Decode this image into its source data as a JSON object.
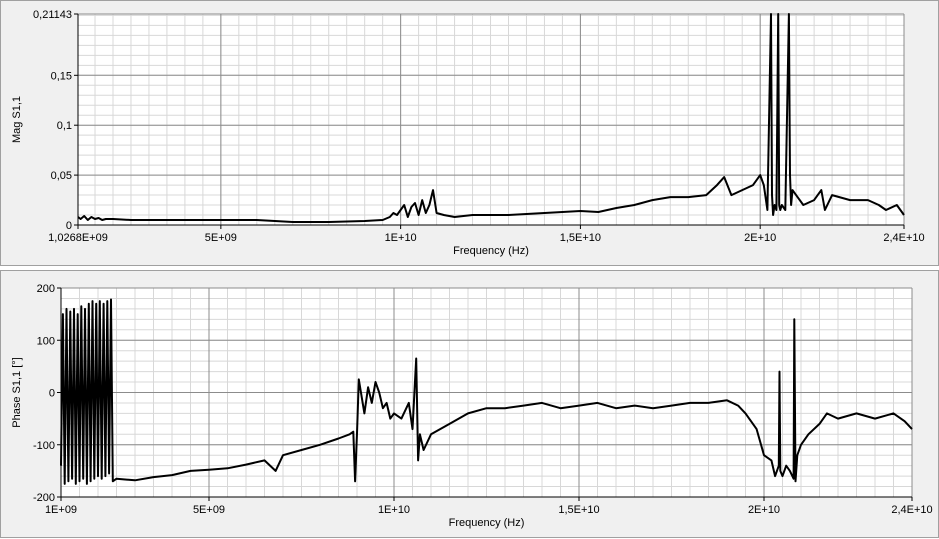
{
  "chart_data": [
    {
      "type": "line",
      "title": "",
      "xlabel": "Frequency (Hz)",
      "ylabel": "Mag S1,1",
      "xlim": [
        1026800000.0,
        24000000000.0
      ],
      "ylim": [
        0,
        0.21143
      ],
      "x_ticks": [
        {
          "value": 1026800000.0,
          "label": "1,0268E+09"
        },
        {
          "value": 5000000000.0,
          "label": "5E+09"
        },
        {
          "value": 10000000000.0,
          "label": "1E+10"
        },
        {
          "value": 15000000000.0,
          "label": "1,5E+10"
        },
        {
          "value": 20000000000.0,
          "label": "2E+10"
        },
        {
          "value": 24000000000.0,
          "label": "2,4E+10"
        }
      ],
      "y_ticks": [
        {
          "value": 0,
          "label": "0"
        },
        {
          "value": 0.05,
          "label": "0,05"
        },
        {
          "value": 0.1,
          "label": "0,1"
        },
        {
          "value": 0.15,
          "label": "0,15"
        },
        {
          "value": 0.21143,
          "label": "0,21143"
        }
      ],
      "grid": true,
      "series": [
        {
          "x": [
            1030000000.0,
            1100000000.0,
            1200000000.0,
            1300000000.0,
            1400000000.0,
            1500000000.0,
            1600000000.0,
            1700000000.0,
            1800000000.0,
            2000000000.0,
            2500000000.0,
            3000000000.0,
            4000000000.0,
            5000000000.0,
            6000000000.0,
            6500000000.0,
            7000000000.0,
            8000000000.0,
            9000000000.0,
            9500000000.0,
            9700000000.0,
            9800000000.0,
            9900000000.0,
            10000000000.0,
            10100000000.0,
            10200000000.0,
            10300000000.0,
            10400000000.0,
            10500000000.0,
            10600000000.0,
            10700000000.0,
            10800000000.0,
            10900000000.0,
            11000000000.0,
            11200000000.0,
            11500000000.0,
            12000000000.0,
            13000000000.0,
            14000000000.0,
            15000000000.0,
            15500000000.0,
            16000000000.0,
            16500000000.0,
            17000000000.0,
            17500000000.0,
            18000000000.0,
            18500000000.0,
            18800000000.0,
            19000000000.0,
            19200000000.0,
            19500000000.0,
            19800000000.0,
            20000000000.0,
            20100000000.0,
            20200000000.0,
            20300000000.0,
            20330000000.0,
            20360000000.0,
            20400000000.0,
            20450000000.0,
            20500000000.0,
            20530000000.0,
            20560000000.0,
            20600000000.0,
            20700000000.0,
            20800000000.0,
            20830000000.0,
            20860000000.0,
            20900000000.0,
            21000000000.0,
            21200000000.0,
            21500000000.0,
            21700000000.0,
            21800000000.0,
            22000000000.0,
            22500000000.0,
            23000000000.0,
            23300000000.0,
            23500000000.0,
            23800000000.0,
            24000000000.0
          ],
          "y": [
            0.008,
            0.006,
            0.009,
            0.005,
            0.008,
            0.006,
            0.007,
            0.005,
            0.006,
            0.006,
            0.005,
            0.005,
            0.005,
            0.005,
            0.005,
            0.004,
            0.003,
            0.003,
            0.004,
            0.005,
            0.008,
            0.012,
            0.01,
            0.015,
            0.02,
            0.008,
            0.018,
            0.022,
            0.01,
            0.025,
            0.012,
            0.02,
            0.035,
            0.012,
            0.01,
            0.008,
            0.01,
            0.01,
            0.012,
            0.014,
            0.013,
            0.017,
            0.02,
            0.025,
            0.028,
            0.028,
            0.03,
            0.04,
            0.048,
            0.03,
            0.035,
            0.04,
            0.05,
            0.04,
            0.015,
            0.2114,
            0.03,
            0.01,
            0.02,
            0.015,
            0.2114,
            0.02,
            0.015,
            0.02,
            0.015,
            0.2114,
            0.05,
            0.02,
            0.035,
            0.03,
            0.02,
            0.025,
            0.035,
            0.015,
            0.03,
            0.025,
            0.025,
            0.02,
            0.015,
            0.02,
            0.01
          ]
        }
      ]
    },
    {
      "type": "line",
      "title": "",
      "xlabel": "Frequency (Hz)",
      "ylabel": "Phase S1,1 [°]",
      "xlim": [
        1000000000.0,
        24000000000.0
      ],
      "ylim": [
        -200,
        200
      ],
      "x_ticks": [
        {
          "value": 1000000000.0,
          "label": "1E+09"
        },
        {
          "value": 5000000000.0,
          "label": "5E+09"
        },
        {
          "value": 10000000000.0,
          "label": "1E+10"
        },
        {
          "value": 15000000000.0,
          "label": "1,5E+10"
        },
        {
          "value": 20000000000.0,
          "label": "2E+10"
        },
        {
          "value": 24000000000.0,
          "label": "2,4E+10"
        }
      ],
      "y_ticks": [
        {
          "value": -200,
          "label": "-200"
        },
        {
          "value": -100,
          "label": "-100"
        },
        {
          "value": 0,
          "label": "0"
        },
        {
          "value": 100,
          "label": "100"
        },
        {
          "value": 200,
          "label": "200"
        }
      ],
      "grid": true,
      "series": [
        {
          "x": [
            1000000000.0,
            1050000000.0,
            1100000000.0,
            1150000000.0,
            1200000000.0,
            1250000000.0,
            1300000000.0,
            1350000000.0,
            1400000000.0,
            1450000000.0,
            1500000000.0,
            1550000000.0,
            1600000000.0,
            1650000000.0,
            1700000000.0,
            1750000000.0,
            1800000000.0,
            1850000000.0,
            1900000000.0,
            1950000000.0,
            2000000000.0,
            2050000000.0,
            2100000000.0,
            2150000000.0,
            2200000000.0,
            2250000000.0,
            2300000000.0,
            2350000000.0,
            2400000000.0,
            2500000000.0,
            3000000000.0,
            3500000000.0,
            4000000000.0,
            4500000000.0,
            5000000000.0,
            5500000000.0,
            6000000000.0,
            6500000000.0,
            6800000000.0,
            7000000000.0,
            7500000000.0,
            8000000000.0,
            8500000000.0,
            8800000000.0,
            8900000000.0,
            8950000000.0,
            9000000000.0,
            9050000000.0,
            9200000000.0,
            9300000000.0,
            9400000000.0,
            9500000000.0,
            9600000000.0,
            9700000000.0,
            9800000000.0,
            9900000000.0,
            10000000000.0,
            10200000000.0,
            10400000000.0,
            10500000000.0,
            10600000000.0,
            10650000000.0,
            10700000000.0,
            10800000000.0,
            11000000000.0,
            11500000000.0,
            12000000000.0,
            12500000000.0,
            13000000000.0,
            13500000000.0,
            14000000000.0,
            14500000000.0,
            15000000000.0,
            15500000000.0,
            16000000000.0,
            16500000000.0,
            17000000000.0,
            17500000000.0,
            18000000000.0,
            18500000000.0,
            19000000000.0,
            19300000000.0,
            19500000000.0,
            19800000000.0,
            20000000000.0,
            20200000000.0,
            20300000000.0,
            20400000000.0,
            20420000000.0,
            20440000000.0,
            20500000000.0,
            20600000000.0,
            20700000000.0,
            20800000000.0,
            20820000000.0,
            20850000000.0,
            20900000000.0,
            21000000000.0,
            21200000000.0,
            21500000000.0,
            21700000000.0,
            22000000000.0,
            22500000000.0,
            23000000000.0,
            23500000000.0,
            23800000000.0,
            24000000000.0
          ],
          "y": [
            -140,
            150,
            -175,
            160,
            -170,
            155,
            -165,
            160,
            -175,
            150,
            -170,
            165,
            -165,
            160,
            -175,
            170,
            -170,
            175,
            -165,
            170,
            -160,
            175,
            -165,
            170,
            -160,
            175,
            -155,
            178,
            -170,
            -165,
            -168,
            -162,
            -158,
            -150,
            -148,
            -145,
            -138,
            -130,
            -150,
            -120,
            -110,
            -100,
            -88,
            -80,
            -75,
            -170,
            -78,
            25,
            -40,
            10,
            -20,
            20,
            0,
            -30,
            -20,
            -50,
            -40,
            -50,
            -20,
            -70,
            65,
            -130,
            -80,
            -110,
            -80,
            -60,
            -40,
            -30,
            -30,
            -25,
            -20,
            -30,
            -25,
            -20,
            -30,
            -25,
            -30,
            -25,
            -20,
            -20,
            -15,
            -25,
            -40,
            -70,
            -120,
            -130,
            -160,
            -140,
            40,
            -150,
            -160,
            -140,
            -150,
            -165,
            140,
            -170,
            -120,
            -100,
            -80,
            -60,
            -40,
            -50,
            -40,
            -50,
            -40,
            -55,
            -70
          ]
        }
      ]
    }
  ]
}
